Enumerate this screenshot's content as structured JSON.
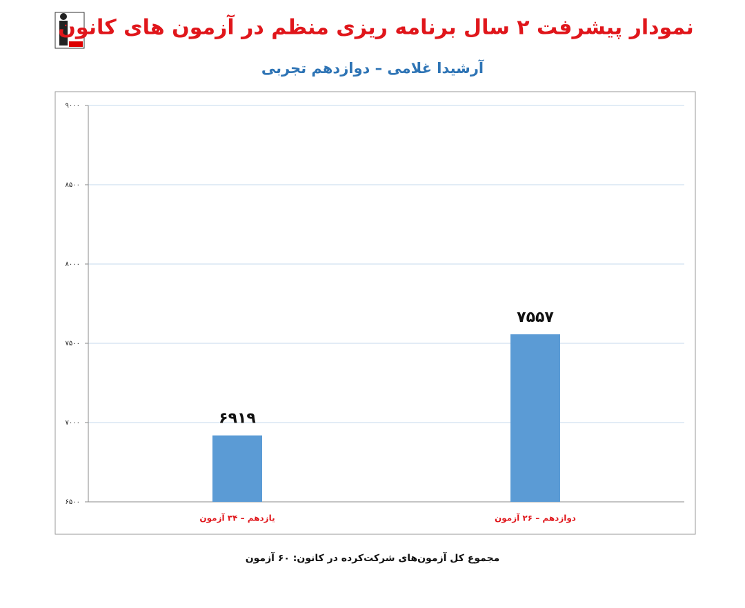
{
  "chart_data": {
    "type": "bar",
    "title": "نمودار پیشرفت ۲ سال برنامه ریزی منظم در آزمون های کانون",
    "subtitle": "آرشیدا غلامی – دوازدهم تجربی",
    "categories": [
      "یازدهم – ۳۴ آزمون",
      "دوازدهم – ۲۶ آزمون"
    ],
    "values": [
      6919,
      7557
    ],
    "value_labels": [
      "۶۹۱۹",
      "۷۵۵۷"
    ],
    "color": "#5b9bd5",
    "ylim": [
      6500,
      9000
    ],
    "yticks": [
      {
        "value": 6500,
        "label": "۶۵۰۰"
      },
      {
        "value": 7000,
        "label": "۷۰۰۰"
      },
      {
        "value": 7500,
        "label": "۷۵۰۰"
      },
      {
        "value": 8000,
        "label": "۸۰۰۰"
      },
      {
        "value": 8500,
        "label": "۸۵۰۰"
      },
      {
        "value": 9000,
        "label": "۹۰۰۰"
      }
    ],
    "grid": true,
    "note": "مجموع کل آزمون‌های شرکت‌کرده در کانون: ۶۰ آزمون"
  }
}
